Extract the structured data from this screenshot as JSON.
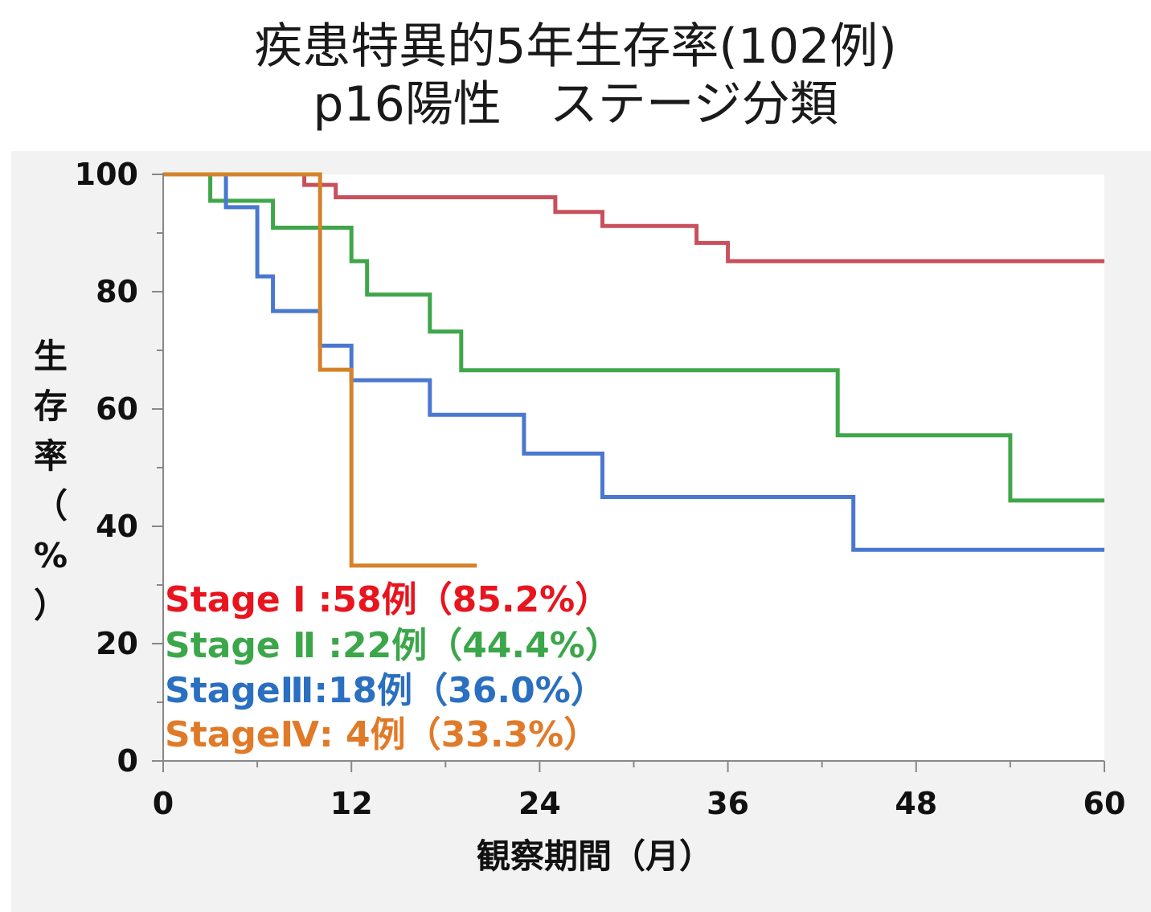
{
  "chart_data": {
    "type": "line",
    "subtype": "kaplan-meier step",
    "title": "疾患特異的5年生存率(102例)",
    "subtitle": "p16陽性　ステージ分類",
    "xlabel": "観察期間（月）",
    "ylabel": "生存率（%）",
    "xlim": [
      0,
      60
    ],
    "ylim": [
      0,
      100
    ],
    "xticks": [
      0,
      12,
      24,
      36,
      48,
      60
    ],
    "xminor": [
      6,
      18,
      30,
      42,
      54
    ],
    "yticks": [
      0,
      20,
      40,
      60,
      80,
      100
    ],
    "yminor": [
      10,
      30,
      50,
      70,
      90
    ],
    "legend_position": "bottom-left inside plot",
    "series": [
      {
        "name": "Stage I",
        "legend": "Stage Ⅰ :58例（85.2%）",
        "color": "#c8505c",
        "legend_color": "#e8141e",
        "x": [
          0,
          9,
          9,
          11,
          11,
          25,
          25,
          28,
          28,
          34,
          34,
          36,
          36,
          60
        ],
        "y": [
          100,
          100,
          98.2,
          98.2,
          96.1,
          96.1,
          93.6,
          93.6,
          91.2,
          91.2,
          88.3,
          88.3,
          85.2,
          85.2
        ]
      },
      {
        "name": "Stage II",
        "legend": "Stage Ⅱ :22例（44.4%）",
        "color": "#3fa64a",
        "legend_color": "#3ca64a",
        "x": [
          0,
          3,
          3,
          7,
          7,
          12,
          12,
          13,
          13,
          17,
          17,
          19,
          19,
          43,
          43,
          54,
          54,
          60
        ],
        "y": [
          100,
          100,
          95.5,
          95.5,
          90.9,
          90.9,
          85.2,
          85.2,
          79.5,
          79.5,
          73.2,
          73.2,
          66.6,
          66.6,
          55.5,
          55.5,
          44.4,
          44.4
        ]
      },
      {
        "name": "Stage III",
        "legend": "StageⅢ:18例（36.0%）",
        "color": "#4a78d0",
        "legend_color": "#2a6fc0",
        "x": [
          0,
          4,
          4,
          6,
          6,
          7,
          7,
          10,
          10,
          12,
          12,
          17,
          17,
          23,
          23,
          28,
          28,
          44,
          44,
          60
        ],
        "y": [
          100,
          100,
          94.4,
          94.4,
          82.6,
          82.6,
          76.7,
          76.7,
          70.8,
          70.8,
          64.9,
          64.9,
          59.0,
          59.0,
          52.4,
          52.4,
          45.0,
          45.0,
          36.0,
          36.0
        ]
      },
      {
        "name": "Stage IV",
        "legend": "StageⅣ:  4例（33.3%）",
        "color": "#d4832a",
        "legend_color": "#e07a28",
        "x": [
          0,
          10,
          10,
          12,
          12,
          20
        ],
        "y": [
          100,
          100,
          66.7,
          66.7,
          33.3,
          33.3
        ]
      }
    ]
  }
}
